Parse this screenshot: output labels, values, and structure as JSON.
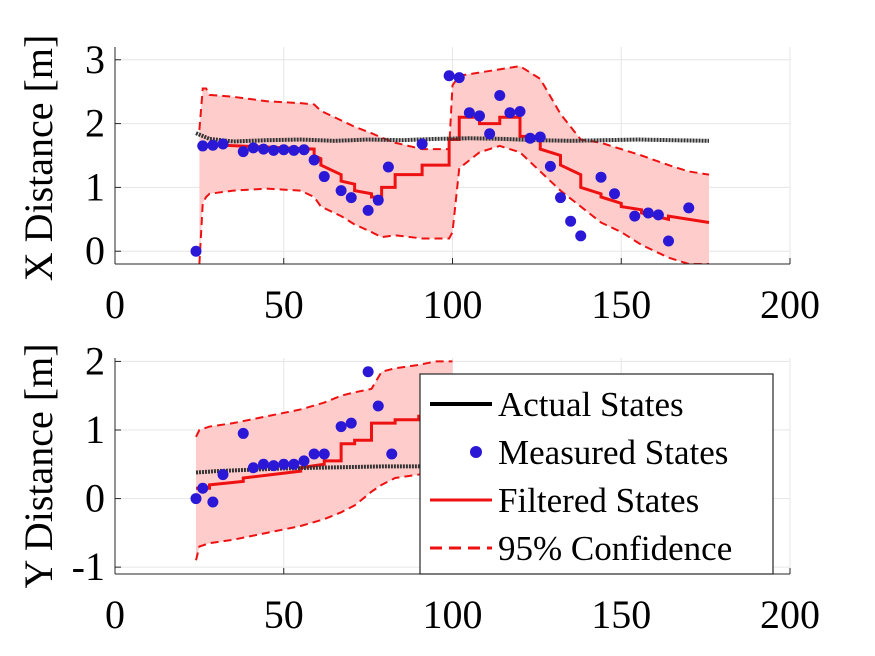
{
  "chart_data": [
    {
      "type": "line",
      "title": "",
      "xlabel": "",
      "ylabel": "X Distance [m]",
      "xlim": [
        0,
        200
      ],
      "ylim": [
        -0.2,
        3.2
      ],
      "xticks": [
        0,
        50,
        100,
        150,
        200
      ],
      "yticks": [
        0,
        1,
        2,
        3
      ],
      "grid": true,
      "series": [
        {
          "name": "Actual States",
          "color": "#000000",
          "style": "solid-thick",
          "x": [
            24,
            28,
            35,
            45,
            55,
            65,
            75,
            85,
            95,
            105,
            115,
            125,
            135,
            145,
            155,
            165,
            176
          ],
          "y": [
            1.85,
            1.76,
            1.72,
            1.74,
            1.75,
            1.73,
            1.75,
            1.74,
            1.76,
            1.77,
            1.76,
            1.74,
            1.73,
            1.74,
            1.75,
            1.74,
            1.73
          ]
        },
        {
          "name": "Measured States",
          "color": "#2a18d6",
          "style": "marker",
          "x": [
            24,
            26,
            29,
            32,
            38,
            41,
            44,
            47,
            50,
            53,
            56,
            59,
            62,
            67,
            70,
            75,
            78,
            81,
            91,
            99,
            102,
            105,
            108,
            111,
            114,
            117,
            120,
            123,
            126,
            129,
            132,
            135,
            138,
            144,
            148,
            154,
            158,
            161,
            164,
            170
          ],
          "y": [
            0.0,
            1.65,
            1.66,
            1.68,
            1.56,
            1.62,
            1.6,
            1.58,
            1.59,
            1.58,
            1.59,
            1.43,
            1.17,
            0.95,
            0.84,
            0.64,
            0.8,
            1.32,
            1.68,
            2.75,
            2.72,
            2.17,
            2.12,
            1.84,
            2.44,
            2.17,
            2.19,
            1.77,
            1.79,
            1.33,
            0.84,
            0.47,
            0.24,
            1.16,
            0.9,
            0.55,
            0.6,
            0.57,
            0.16,
            0.68
          ]
        },
        {
          "name": "Filtered States",
          "color": "#ee1111",
          "style": "solid",
          "x": [
            26,
            28,
            28,
            59,
            59,
            61,
            61,
            67,
            67,
            71,
            71,
            76,
            76,
            79,
            79,
            83,
            83,
            91,
            91,
            99,
            99,
            102,
            102,
            108,
            108,
            114,
            114,
            120,
            120,
            126,
            126,
            132,
            132,
            138,
            138,
            144,
            144,
            150,
            150,
            156,
            156,
            164,
            164,
            176
          ],
          "y": [
            1.65,
            1.65,
            1.67,
            1.6,
            1.5,
            1.45,
            1.35,
            1.2,
            1.1,
            1.05,
            0.95,
            0.9,
            0.85,
            0.85,
            1.0,
            1.0,
            1.2,
            1.2,
            1.35,
            1.35,
            1.75,
            1.75,
            2.1,
            2.1,
            2.0,
            2.0,
            2.1,
            2.1,
            1.8,
            1.8,
            1.6,
            1.5,
            1.35,
            1.2,
            1.0,
            0.9,
            0.85,
            0.75,
            0.7,
            0.65,
            0.6,
            0.5,
            0.55,
            0.45
          ]
        },
        {
          "name": "95% Confidence",
          "color": "#ee1111",
          "style": "dashed-band",
          "x": [
            25,
            26,
            27,
            28,
            35,
            45,
            55,
            59,
            61,
            67,
            71,
            76,
            79,
            83,
            91,
            99,
            100,
            102,
            108,
            114,
            120,
            126,
            132,
            138,
            144,
            150,
            156,
            164,
            170,
            176
          ],
          "upper": [
            1.9,
            2.55,
            2.55,
            2.45,
            2.42,
            2.35,
            2.32,
            2.3,
            2.2,
            2.05,
            1.95,
            1.85,
            1.78,
            1.7,
            1.6,
            1.6,
            2.6,
            2.75,
            2.8,
            2.85,
            2.9,
            2.7,
            2.15,
            1.75,
            1.7,
            1.6,
            1.5,
            1.35,
            1.25,
            1.2
          ],
          "lower": [
            -0.2,
            0.75,
            0.85,
            0.9,
            0.95,
            0.98,
            0.95,
            0.85,
            0.7,
            0.55,
            0.42,
            0.3,
            0.22,
            0.25,
            0.2,
            0.2,
            0.3,
            1.3,
            1.55,
            1.65,
            1.55,
            1.25,
            0.95,
            0.7,
            0.45,
            0.3,
            0.1,
            -0.1,
            -0.2,
            -0.2
          ]
        }
      ]
    },
    {
      "type": "line",
      "title": "",
      "xlabel": "",
      "ylabel": "Y Distance [m]",
      "xlim": [
        0,
        200
      ],
      "ylim": [
        -1.1,
        2.05
      ],
      "xticks": [
        0,
        50,
        100,
        150,
        200
      ],
      "yticks": [
        -1,
        0,
        1,
        2
      ],
      "grid": true,
      "legend": {
        "placement": "bottom-right",
        "entries": [
          "Actual States",
          "Measured States",
          "Filtered States",
          "95% Confidence"
        ]
      },
      "series": [
        {
          "name": "Actual States",
          "color": "#000000",
          "style": "solid-thick",
          "x": [
            24,
            30,
            40,
            50,
            60,
            70,
            80,
            90,
            100
          ],
          "y": [
            0.38,
            0.4,
            0.42,
            0.44,
            0.45,
            0.46,
            0.47,
            0.47,
            0.48
          ]
        },
        {
          "name": "Measured States",
          "color": "#2a18d6",
          "style": "marker",
          "x": [
            24,
            26,
            29,
            32,
            38,
            41,
            44,
            47,
            50,
            53,
            56,
            59,
            62,
            67,
            70,
            75,
            78,
            82
          ],
          "y": [
            0.0,
            0.15,
            -0.05,
            0.35,
            0.95,
            0.45,
            0.5,
            0.48,
            0.5,
            0.5,
            0.55,
            0.65,
            0.65,
            1.05,
            1.1,
            1.85,
            1.35,
            0.65
          ]
        },
        {
          "name": "Filtered States",
          "color": "#ee1111",
          "style": "solid",
          "x": [
            24,
            28,
            28,
            38,
            38,
            55,
            55,
            62,
            62,
            67,
            67,
            71,
            71,
            76,
            76,
            83,
            83,
            90,
            90,
            100
          ],
          "y": [
            0.15,
            0.15,
            0.2,
            0.25,
            0.3,
            0.4,
            0.45,
            0.5,
            0.55,
            0.55,
            0.8,
            0.8,
            0.85,
            0.85,
            1.1,
            1.1,
            1.15,
            1.15,
            1.2,
            1.2
          ]
        },
        {
          "name": "95% Confidence",
          "color": "#ee1111",
          "style": "dashed-band",
          "x": [
            24,
            25,
            28,
            35,
            45,
            55,
            62,
            67,
            71,
            76,
            79,
            83,
            90,
            95,
            100
          ],
          "upper": [
            0.9,
            1.0,
            1.05,
            1.1,
            1.2,
            1.3,
            1.4,
            1.5,
            1.55,
            1.6,
            1.85,
            1.9,
            1.95,
            2.0,
            2.0
          ],
          "lower": [
            -0.9,
            -0.7,
            -0.65,
            -0.6,
            -0.5,
            -0.4,
            -0.3,
            -0.2,
            -0.1,
            0.1,
            0.2,
            0.3,
            0.35,
            0.4,
            0.45
          ]
        }
      ]
    }
  ]
}
